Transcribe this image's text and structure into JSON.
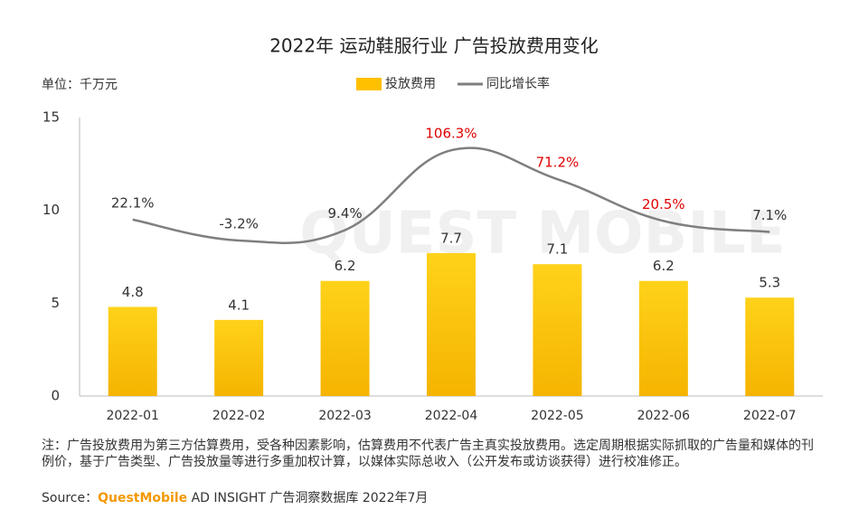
{
  "chart_data": {
    "type": "bar",
    "title": "2022年 运动鞋服行业 广告投放费用变化",
    "unit_label": "单位：千万元",
    "watermark": "QUEST MOBILE",
    "categories": [
      "2022-01",
      "2022-02",
      "2022-03",
      "2022-04",
      "2022-05",
      "2022-06",
      "2022-07"
    ],
    "series": [
      {
        "name": "投放费用",
        "type": "bar",
        "color": "#ffc000",
        "values": [
          4.8,
          4.1,
          6.2,
          7.7,
          7.1,
          6.2,
          5.3
        ]
      },
      {
        "name": "同比增长率",
        "type": "line",
        "axis": "y2",
        "color": "#7f7f7f",
        "values": [
          22.1,
          -3.2,
          9.4,
          106.3,
          71.2,
          20.5,
          7.1
        ],
        "value_labels": [
          "22.1%",
          "-3.2%",
          "9.4%",
          "106.3%",
          "71.2%",
          "20.5%",
          "7.1%"
        ],
        "label_colors": [
          "#333333",
          "#333333",
          "#333333",
          "#e00000",
          "#e00000",
          "#e00000",
          "#333333"
        ]
      }
    ],
    "ylim": [
      0,
      15
    ],
    "yticks": [
      0,
      5,
      10,
      15
    ],
    "y2lim": [
      -192,
      146
    ],
    "legend": "top"
  },
  "footer": {
    "note": "注：广告投放费用为第三方估算费用，受各种因素影响，估算费用不代表广告主真实投放费用。选定周期根据实际抓取的广告量和媒体的刊例价，基于广告类型、广告投放量等进行多重加权计算，以媒体实际总收入（公开发布或访谈获得）进行校准修正。",
    "source_prefix": "Source：",
    "source_brand": "QuestMobile",
    "source_text": " AD INSIGHT 广告洞察数据库 2022年7月"
  }
}
